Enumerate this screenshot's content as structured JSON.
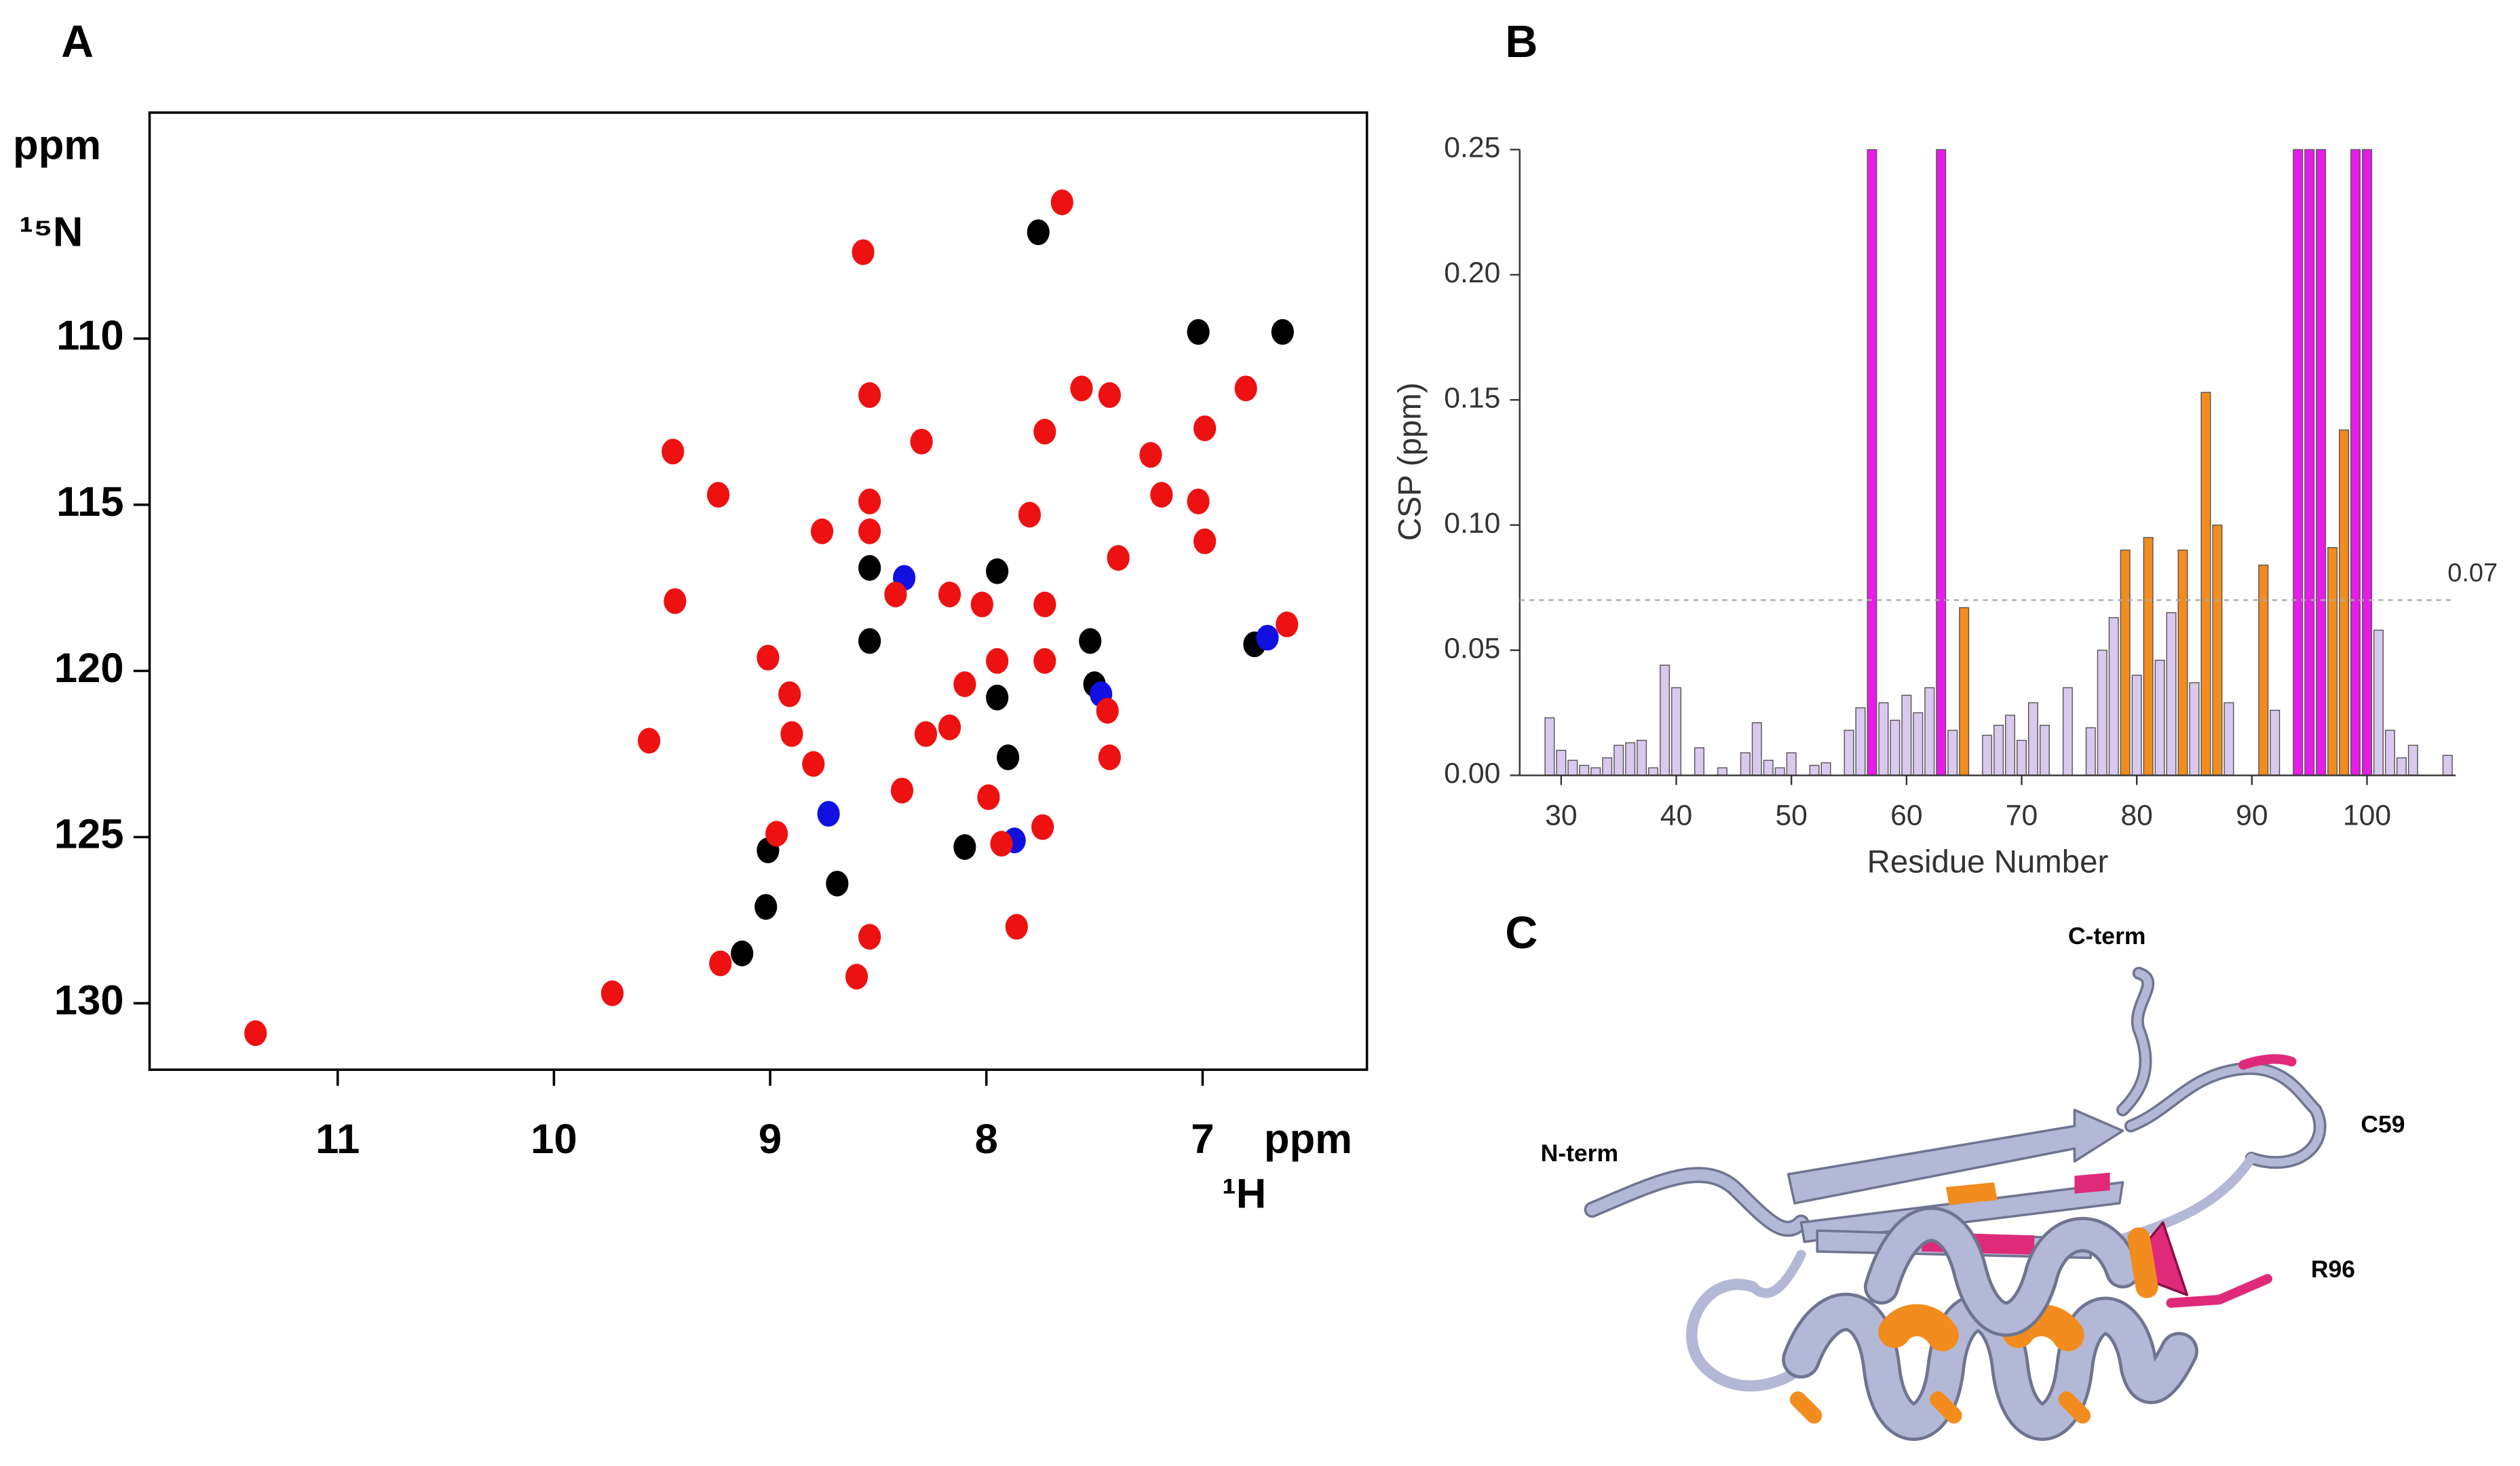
{
  "chart_data": [
    {
      "type": "scatter",
      "panel": "A",
      "x_label": "ppm",
      "x_nucleus": "¹H",
      "y_label": "ppm",
      "y_nucleus": "¹⁵N",
      "xlim": [
        11.87,
        6.24
      ],
      "ylim": [
        103.2,
        132.0
      ],
      "xticks": [
        11,
        10,
        9,
        8,
        7
      ],
      "yticks": [
        110,
        115,
        120,
        125,
        130
      ],
      "series": [
        {
          "color": "#000000",
          "x": [
            7.76,
            7.02,
            6.63,
            6.76,
            8.54,
            8.1,
            9.01,
            8.69,
            9.02,
            9.13,
            7.95,
            7.52,
            8.54,
            7.9,
            7.5,
            7.95
          ],
          "values": [
            106.8,
            109.8,
            109.8,
            119.2,
            116.9,
            125.3,
            125.4,
            126.4,
            127.1,
            128.5,
            117.0,
            119.1,
            119.1,
            122.6,
            120.4,
            120.8
          ]
        },
        {
          "color": "#1010e0",
          "x": [
            6.7,
            8.73,
            7.87,
            7.47,
            8.38
          ],
          "values": [
            119.0,
            124.3,
            125.1,
            120.7,
            117.2
          ]
        },
        {
          "color": "#ee1111",
          "x": [
            11.38,
            9.73,
            9.45,
            9.24,
            9.44,
            9.56,
            9.23,
            9.01,
            8.91,
            8.9,
            8.8,
            8.97,
            8.57,
            8.54,
            8.3,
            8.54,
            8.76,
            8.54,
            8.42,
            8.39,
            8.54,
            8.6,
            8.17,
            8.02,
            8.1,
            7.95,
            8.28,
            8.17,
            7.99,
            7.93,
            7.86,
            7.65,
            7.8,
            7.73,
            7.73,
            7.73,
            7.74,
            7.56,
            7.43,
            7.44,
            7.43,
            7.39,
            7.24,
            7.19,
            7.02,
            6.99,
            6.99,
            6.8,
            6.61
          ],
          "values": [
            130.9,
            129.7,
            113.4,
            114.7,
            117.9,
            122.1,
            128.8,
            119.6,
            120.7,
            121.9,
            122.8,
            124.9,
            107.4,
            111.7,
            113.1,
            114.9,
            115.8,
            115.8,
            117.7,
            123.6,
            128.0,
            129.2,
            117.7,
            118.0,
            120.4,
            119.7,
            121.9,
            121.7,
            123.8,
            125.2,
            127.7,
            105.9,
            115.3,
            112.8,
            118.0,
            119.7,
            124.7,
            111.5,
            111.7,
            121.2,
            122.6,
            116.6,
            113.5,
            114.7,
            114.9,
            116.1,
            112.7,
            111.5,
            118.6
          ]
        }
      ]
    },
    {
      "type": "bar",
      "panel": "B",
      "x_label": "Residue Number",
      "y_label": "CSP (ppm)",
      "xlim": [
        26.4,
        107.7
      ],
      "ylim": [
        0,
        0.25
      ],
      "xticks": [
        30,
        40,
        50,
        60,
        70,
        80,
        90,
        100
      ],
      "yticks": [
        {
          "value": 0,
          "label": "0.00"
        },
        {
          "value": 0.05,
          "label": "0.05"
        },
        {
          "value": 0.1,
          "label": "0.10"
        },
        {
          "value": 0.15,
          "label": "0.15"
        },
        {
          "value": 0.2,
          "label": "0.20"
        },
        {
          "value": 0.25,
          "label": "0.25"
        }
      ],
      "threshold": {
        "value": 0.07,
        "label": "0.07"
      },
      "x": [
        29,
        30,
        31,
        32,
        33,
        34,
        35,
        36,
        37,
        38,
        39,
        40,
        42,
        44,
        46,
        47,
        48,
        49,
        50,
        52,
        53,
        55,
        56,
        57,
        58,
        59,
        60,
        61,
        62,
        63,
        64,
        65,
        67,
        68,
        69,
        70,
        71,
        72,
        74,
        76,
        77,
        78,
        79,
        80,
        81,
        82,
        83,
        84,
        85,
        86,
        87,
        88,
        91,
        92,
        94,
        95,
        96,
        97,
        98,
        99,
        100,
        101,
        102,
        103,
        104,
        107
      ],
      "values": [
        0.023,
        0.01,
        0.006,
        0.004,
        0.003,
        0.007,
        0.012,
        0.013,
        0.014,
        0.003,
        0.044,
        0.035,
        0.011,
        0.003,
        0.009,
        0.021,
        0.006,
        0.003,
        0.009,
        0.004,
        0.005,
        0.018,
        0.027,
        0.25,
        0.029,
        0.022,
        0.032,
        0.025,
        0.035,
        0.25,
        0.018,
        0.067,
        0.016,
        0.02,
        0.024,
        0.014,
        0.029,
        0.02,
        0.035,
        0.019,
        0.05,
        0.063,
        0.09,
        0.04,
        0.095,
        0.046,
        0.065,
        0.09,
        0.037,
        0.153,
        0.1,
        0.029,
        0.084,
        0.026,
        0.25,
        0.25,
        0.25,
        0.091,
        0.138,
        0.25,
        0.25,
        0.058,
        0.018,
        0.007,
        0.012,
        0.008
      ],
      "colors": [
        "#d9c9ee",
        "#d9c9ee",
        "#d9c9ee",
        "#d9c9ee",
        "#d9c9ee",
        "#d9c9ee",
        "#d9c9ee",
        "#d9c9ee",
        "#d9c9ee",
        "#d9c9ee",
        "#d9c9ee",
        "#d9c9ee",
        "#d9c9ee",
        "#d9c9ee",
        "#d9c9ee",
        "#d9c9ee",
        "#d9c9ee",
        "#d9c9ee",
        "#d9c9ee",
        "#d9c9ee",
        "#d9c9ee",
        "#d9c9ee",
        "#d9c9ee",
        "#e81ce8",
        "#d9c9ee",
        "#d9c9ee",
        "#d9c9ee",
        "#d9c9ee",
        "#d9c9ee",
        "#e81ce8",
        "#d9c9ee",
        "#f28c1e",
        "#d9c9ee",
        "#d9c9ee",
        "#d9c9ee",
        "#d9c9ee",
        "#d9c9ee",
        "#d9c9ee",
        "#d9c9ee",
        "#d9c9ee",
        "#d9c9ee",
        "#d9c9ee",
        "#f28c1e",
        "#d9c9ee",
        "#f28c1e",
        "#d9c9ee",
        "#d9c9ee",
        "#f28c1e",
        "#d9c9ee",
        "#f28c1e",
        "#f28c1e",
        "#d9c9ee",
        "#f28c1e",
        "#d9c9ee",
        "#e81ce8",
        "#e81ce8",
        "#e81ce8",
        "#f28c1e",
        "#f28c1e",
        "#e81ce8",
        "#e81ce8",
        "#d9c9ee",
        "#d9c9ee",
        "#d9c9ee",
        "#d9c9ee",
        "#d9c9ee"
      ]
    }
  ],
  "panel_c": {
    "label": "C",
    "annotations": [
      "C-term",
      "N-term",
      "C59",
      "R96"
    ]
  }
}
